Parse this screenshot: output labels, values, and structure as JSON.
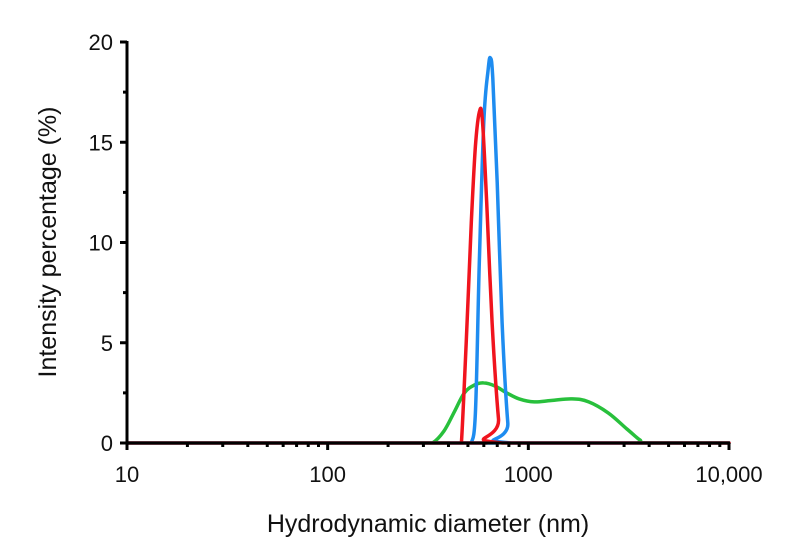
{
  "chart_data": {
    "type": "line",
    "title": "",
    "xlabel": "Hydrodynamic diameter (nm)",
    "ylabel": "Intensity percentage (%)",
    "xscale": "log",
    "xlim": [
      10,
      10000
    ],
    "ylim": [
      0,
      20
    ],
    "x_ticks": [
      10,
      100,
      1000,
      10000
    ],
    "x_tick_labels": [
      "10",
      "100",
      "1000",
      "10,000"
    ],
    "y_ticks": [
      0,
      5,
      10,
      15,
      20
    ],
    "y_tick_labels": [
      "0",
      "5",
      "10",
      "15",
      "20"
    ],
    "grid": false,
    "legend": null,
    "series": [
      {
        "name": "green",
        "color": "#28C03C",
        "points": [
          [
            10,
            0
          ],
          [
            300,
            0
          ],
          [
            333,
            0
          ],
          [
            380,
            0.6
          ],
          [
            430,
            1.6
          ],
          [
            480,
            2.5
          ],
          [
            540,
            2.9
          ],
          [
            598,
            3.0
          ],
          [
            680,
            2.85
          ],
          [
            780,
            2.5
          ],
          [
            900,
            2.2
          ],
          [
            1071,
            2.05
          ],
          [
            1300,
            2.12
          ],
          [
            1655,
            2.2
          ],
          [
            2000,
            2.05
          ],
          [
            2500,
            1.5
          ],
          [
            3100,
            0.7
          ],
          [
            3600,
            0.15
          ],
          [
            3908,
            0
          ],
          [
            10000,
            0
          ]
        ]
      },
      {
        "name": "blue",
        "color": "#1E8CF0",
        "points": [
          [
            10,
            0
          ],
          [
            505,
            0
          ],
          [
            520,
            0
          ],
          [
            545,
            1.5
          ],
          [
            570,
            9
          ],
          [
            600,
            16
          ],
          [
            630,
            18.6
          ],
          [
            647,
            19.2
          ],
          [
            665,
            18.2
          ],
          [
            700,
            13
          ],
          [
            740,
            6
          ],
          [
            790,
            1
          ],
          [
            822,
            0
          ],
          [
            10000,
            0
          ]
        ]
      },
      {
        "name": "red",
        "color": "#F0141E",
        "points": [
          [
            10,
            0
          ],
          [
            455,
            0
          ],
          [
            464,
            0
          ],
          [
            490,
            5
          ],
          [
            520,
            11
          ],
          [
            545,
            14.8
          ],
          [
            570,
            16.5
          ],
          [
            590,
            16.1
          ],
          [
            620,
            12
          ],
          [
            660,
            6
          ],
          [
            710,
            1.2
          ],
          [
            743,
            0
          ],
          [
            10000,
            0
          ]
        ]
      }
    ]
  }
}
